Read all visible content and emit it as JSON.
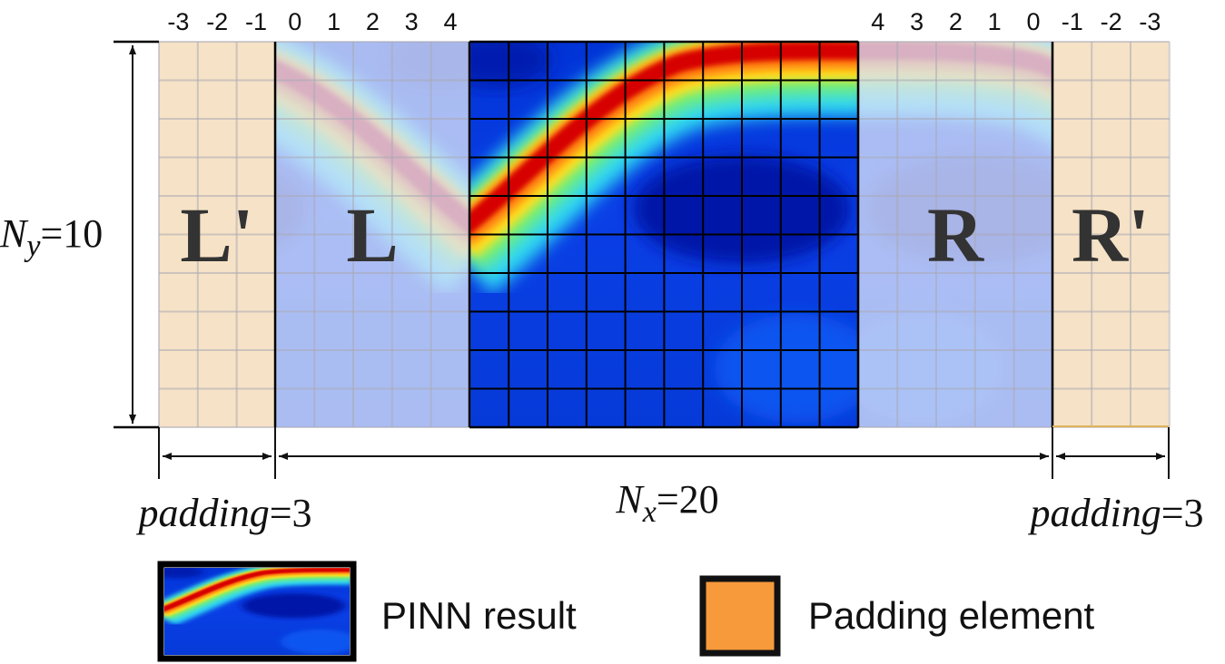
{
  "regions": {
    "left_pad": "L'",
    "left": "L",
    "right": "R",
    "right_pad": "R'"
  },
  "top_ticks": {
    "left_pad": [
      "-3",
      "-2",
      "-1"
    ],
    "left": [
      "0",
      "1",
      "2",
      "3",
      "4"
    ],
    "right": [
      "4",
      "3",
      "2",
      "1",
      "0"
    ],
    "right_pad": [
      "-1",
      "-2",
      "-3"
    ]
  },
  "grid": {
    "nx": 20,
    "ny": 10,
    "padding": 3
  },
  "labels": {
    "ny_var": "N",
    "ny_sub": "y",
    "ny_eq": "=10",
    "nx_var": "N",
    "nx_sub": "x",
    "nx_eq": "=20",
    "pad_left_var": "padding",
    "pad_left_eq": "=3",
    "pad_right_var": "padding",
    "pad_right_eq": "=3"
  },
  "legend": {
    "pinn_label": "PINN result",
    "padding_label": "Padding element"
  },
  "colors": {
    "padding_fill": "#f6e2c6",
    "padding_swatch": "#f79a3c",
    "overlay_fill": "#d9e2f8"
  }
}
